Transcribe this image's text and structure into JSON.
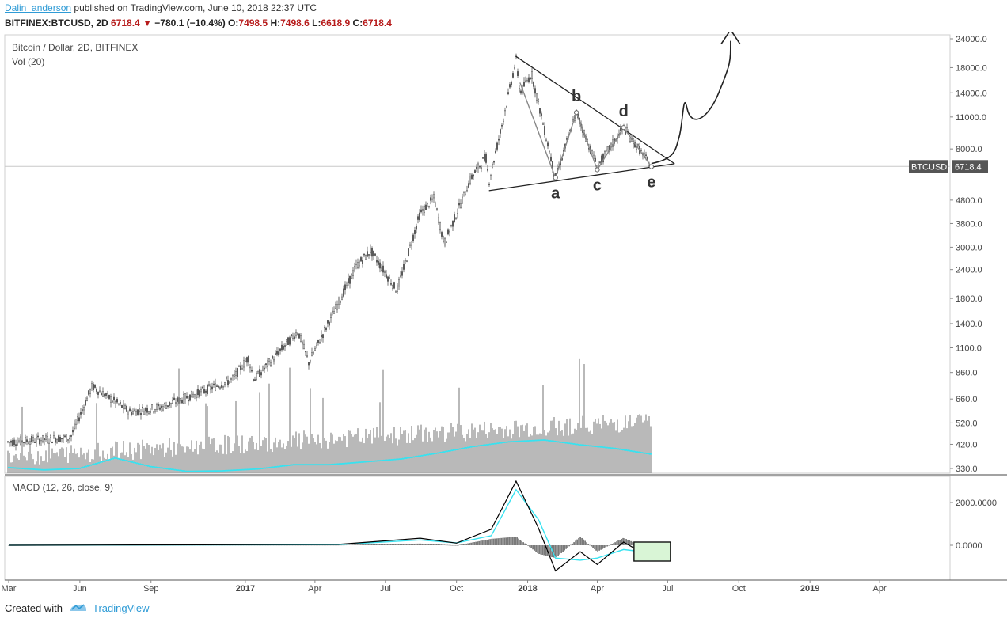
{
  "header": {
    "author": "Dalin_anderson",
    "published_text": "published on TradingView.com, June 10, 2018 22:37 UTC",
    "symbol": "BITFINEX:BTCUSD, 2D",
    "last": "6718.4",
    "change": "−780.1 (−10.4%)",
    "open_label": "O:",
    "open": "7498.5",
    "high_label": "H:",
    "high": "7498.6",
    "low_label": "L:",
    "low": "6618.9",
    "close_label": "C:",
    "close": "6718.4"
  },
  "pane_labels": {
    "main": "Bitcoin / Dollar, 2D, BITFINEX",
    "volume": "Vol (20)",
    "macd": "MACD (12, 26, close, 9)"
  },
  "footer": {
    "created_with": "Created with",
    "brand": "TradingView"
  },
  "colors": {
    "candle": "#555555",
    "volume_ma": "#37e2f0",
    "macd_line": "#000000",
    "signal_line": "#37e2f0",
    "grid": "#e8e8e8",
    "accent": "#2e9bd6",
    "price_tag": "#555555",
    "box_fill": "#d9f5d6"
  },
  "chart_data": [
    {
      "type": "line",
      "title": "Bitcoin / Dollar, 2D, BITFINEX",
      "scale": "log",
      "ylim": [
        300,
        26000
      ],
      "y_ticks": [
        "24000.0",
        "18000.0",
        "14000.0",
        "11000.0",
        "8000.0",
        "4800.0",
        "3800.0",
        "3000.0",
        "2400.0",
        "1800.0",
        "1400.0",
        "1100.0",
        "860.0",
        "660.0",
        "520.0",
        "420.0",
        "330.0"
      ],
      "x_ticks": [
        "Mar",
        "Jun",
        "Sep",
        "2017",
        "Apr",
        "Jul",
        "Oct",
        "2018",
        "Apr",
        "Jul",
        "Oct",
        "2019",
        "Apr"
      ],
      "last_price_tag": {
        "symbol": "BTCUSD",
        "value": "6718.4",
        "price": 6718.4
      },
      "series": [
        {
          "values_x": [
            "2016-03-01",
            "2016-05-20",
            "2016-06-17",
            "2016-08-05",
            "2016-09-15",
            "2016-12-15",
            "2017-01-05",
            "2017-01-12",
            "2017-03-10",
            "2017-03-24",
            "2017-05-25",
            "2017-06-12",
            "2017-07-16",
            "2017-08-15",
            "2017-09-02",
            "2017-09-15",
            "2017-10-20",
            "2017-11-08",
            "2017-11-12",
            "2017-11-28",
            "2017-12-17",
            "2017-12-22",
            "2018-01-06",
            "2018-02-06",
            "2018-03-05",
            "2018-04-01",
            "2018-05-05",
            "2018-06-10"
          ],
          "values": [
            430,
            450,
            750,
            580,
            610,
            800,
            1000,
            800,
            1300,
            950,
            2500,
            2900,
            1950,
            4200,
            4900,
            3100,
            6000,
            7400,
            5800,
            9900,
            19500,
            14000,
            17000,
            6000,
            11500,
            6700,
            9900,
            6718
          ]
        }
      ],
      "annotations": [
        {
          "text": "a",
          "x": "2018-02-06",
          "y": 6000
        },
        {
          "text": "b",
          "x": "2018-03-05",
          "y": 11500
        },
        {
          "text": "c",
          "x": "2018-04-01",
          "y": 6500
        },
        {
          "text": "d",
          "x": "2018-05-05",
          "y": 9900
        },
        {
          "text": "e",
          "x": "2018-06-10",
          "y": 6700
        }
      ]
    },
    {
      "type": "bar",
      "title": "Vol (20)",
      "description": "volume histogram with 20-period moving average line",
      "ma_values": [
        0.6,
        0.35,
        0.5,
        1.6,
        0.7,
        0.2,
        0.25,
        0.45,
        0.9,
        0.9,
        1.2,
        1.5,
        2.1,
        2.8,
        3.3,
        3.5,
        3.0,
        2.6,
        2.0
      ]
    },
    {
      "type": "line",
      "title": "MACD (12, 26, close, 9)",
      "y_ticks": [
        "2000.0000",
        "0.0000"
      ],
      "ylim": [
        -1300,
        3200
      ],
      "macd_x": [
        "2016-03-01",
        "2017-05-01",
        "2017-08-15",
        "2017-10-01",
        "2017-11-15",
        "2017-12-17",
        "2018-01-15",
        "2018-02-06",
        "2018-03-10",
        "2018-04-01",
        "2018-05-05",
        "2018-06-10"
      ],
      "macd_values": [
        0,
        40,
        330,
        100,
        750,
        3000,
        800,
        -1200,
        -300,
        -900,
        150,
        -600
      ],
      "signal_values": [
        0,
        30,
        250,
        110,
        450,
        2600,
        1200,
        -600,
        -700,
        -600,
        -200,
        -350
      ]
    }
  ]
}
